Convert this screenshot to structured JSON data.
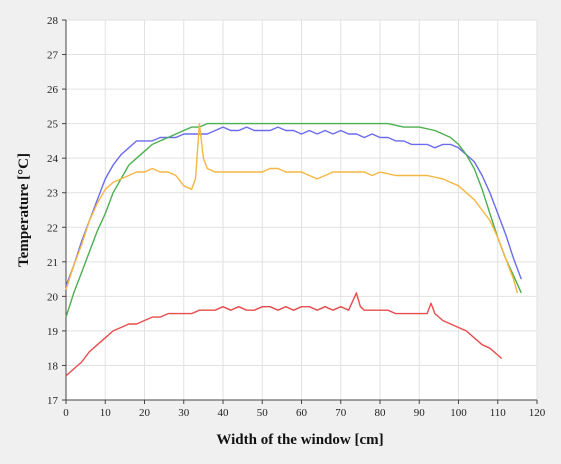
{
  "chart_data": {
    "type": "line",
    "xlabel": "Width of the window [cm]",
    "ylabel": "Temperature [°C]",
    "xlim": [
      0,
      120
    ],
    "ylim": [
      17,
      28
    ],
    "xticks": [
      0,
      10,
      20,
      30,
      40,
      50,
      60,
      70,
      80,
      90,
      100,
      110,
      120
    ],
    "yticks": [
      17,
      18,
      19,
      20,
      21,
      22,
      23,
      24,
      25,
      26,
      27,
      28
    ],
    "grid": true,
    "series": [
      {
        "color": "#6b6bef",
        "points": [
          [
            0,
            20.3
          ],
          [
            2,
            20.9
          ],
          [
            4,
            21.6
          ],
          [
            6,
            22.2
          ],
          [
            8,
            22.8
          ],
          [
            10,
            23.4
          ],
          [
            12,
            23.8
          ],
          [
            14,
            24.1
          ],
          [
            16,
            24.3
          ],
          [
            18,
            24.5
          ],
          [
            20,
            24.5
          ],
          [
            22,
            24.5
          ],
          [
            24,
            24.6
          ],
          [
            26,
            24.6
          ],
          [
            28,
            24.6
          ],
          [
            30,
            24.7
          ],
          [
            32,
            24.7
          ],
          [
            34,
            24.7
          ],
          [
            36,
            24.7
          ],
          [
            38,
            24.8
          ],
          [
            40,
            24.9
          ],
          [
            42,
            24.8
          ],
          [
            44,
            24.8
          ],
          [
            46,
            24.9
          ],
          [
            48,
            24.8
          ],
          [
            50,
            24.8
          ],
          [
            52,
            24.8
          ],
          [
            54,
            24.9
          ],
          [
            56,
            24.8
          ],
          [
            58,
            24.8
          ],
          [
            60,
            24.7
          ],
          [
            62,
            24.8
          ],
          [
            64,
            24.7
          ],
          [
            66,
            24.8
          ],
          [
            68,
            24.7
          ],
          [
            70,
            24.8
          ],
          [
            72,
            24.7
          ],
          [
            74,
            24.7
          ],
          [
            76,
            24.6
          ],
          [
            78,
            24.7
          ],
          [
            80,
            24.6
          ],
          [
            82,
            24.6
          ],
          [
            84,
            24.5
          ],
          [
            86,
            24.5
          ],
          [
            88,
            24.4
          ],
          [
            90,
            24.4
          ],
          [
            92,
            24.4
          ],
          [
            94,
            24.3
          ],
          [
            96,
            24.4
          ],
          [
            98,
            24.4
          ],
          [
            100,
            24.3
          ],
          [
            102,
            24.1
          ],
          [
            104,
            23.9
          ],
          [
            106,
            23.5
          ],
          [
            108,
            23.0
          ],
          [
            110,
            22.4
          ],
          [
            112,
            21.8
          ],
          [
            114,
            21.1
          ],
          [
            116,
            20.5
          ]
        ]
      },
      {
        "color": "#4caf50",
        "points": [
          [
            0,
            19.4
          ],
          [
            2,
            20.1
          ],
          [
            4,
            20.7
          ],
          [
            6,
            21.3
          ],
          [
            8,
            21.9
          ],
          [
            10,
            22.4
          ],
          [
            12,
            23.0
          ],
          [
            14,
            23.4
          ],
          [
            16,
            23.8
          ],
          [
            18,
            24.0
          ],
          [
            20,
            24.2
          ],
          [
            22,
            24.4
          ],
          [
            24,
            24.5
          ],
          [
            26,
            24.6
          ],
          [
            28,
            24.7
          ],
          [
            30,
            24.8
          ],
          [
            32,
            24.9
          ],
          [
            34,
            24.9
          ],
          [
            36,
            25.0
          ],
          [
            38,
            25.0
          ],
          [
            40,
            25.0
          ],
          [
            44,
            25.0
          ],
          [
            48,
            25.0
          ],
          [
            52,
            25.0
          ],
          [
            56,
            25.0
          ],
          [
            60,
            25.0
          ],
          [
            64,
            25.0
          ],
          [
            66,
            25.0
          ],
          [
            70,
            25.0
          ],
          [
            74,
            25.0
          ],
          [
            78,
            25.0
          ],
          [
            82,
            25.0
          ],
          [
            86,
            24.9
          ],
          [
            90,
            24.9
          ],
          [
            94,
            24.8
          ],
          [
            96,
            24.7
          ],
          [
            98,
            24.6
          ],
          [
            100,
            24.4
          ],
          [
            102,
            24.1
          ],
          [
            104,
            23.7
          ],
          [
            106,
            23.1
          ],
          [
            108,
            22.4
          ],
          [
            110,
            21.7
          ],
          [
            112,
            21.1
          ],
          [
            114,
            20.6
          ],
          [
            116,
            20.1
          ]
        ]
      },
      {
        "color": "#f5b642",
        "points": [
          [
            0,
            20.2
          ],
          [
            2,
            20.9
          ],
          [
            4,
            21.5
          ],
          [
            6,
            22.2
          ],
          [
            8,
            22.7
          ],
          [
            10,
            23.1
          ],
          [
            12,
            23.3
          ],
          [
            14,
            23.4
          ],
          [
            16,
            23.5
          ],
          [
            18,
            23.6
          ],
          [
            20,
            23.6
          ],
          [
            22,
            23.7
          ],
          [
            24,
            23.6
          ],
          [
            26,
            23.6
          ],
          [
            28,
            23.5
          ],
          [
            30,
            23.2
          ],
          [
            32,
            23.1
          ],
          [
            33,
            23.4
          ],
          [
            34,
            25.0
          ],
          [
            35,
            24.0
          ],
          [
            36,
            23.7
          ],
          [
            38,
            23.6
          ],
          [
            40,
            23.6
          ],
          [
            44,
            23.6
          ],
          [
            48,
            23.6
          ],
          [
            50,
            23.6
          ],
          [
            52,
            23.7
          ],
          [
            54,
            23.7
          ],
          [
            56,
            23.6
          ],
          [
            60,
            23.6
          ],
          [
            62,
            23.5
          ],
          [
            64,
            23.4
          ],
          [
            66,
            23.5
          ],
          [
            68,
            23.6
          ],
          [
            72,
            23.6
          ],
          [
            76,
            23.6
          ],
          [
            78,
            23.5
          ],
          [
            80,
            23.6
          ],
          [
            84,
            23.5
          ],
          [
            88,
            23.5
          ],
          [
            92,
            23.5
          ],
          [
            96,
            23.4
          ],
          [
            98,
            23.3
          ],
          [
            100,
            23.2
          ],
          [
            102,
            23.0
          ],
          [
            104,
            22.8
          ],
          [
            106,
            22.5
          ],
          [
            108,
            22.2
          ],
          [
            110,
            21.7
          ],
          [
            112,
            21.1
          ],
          [
            114,
            20.5
          ],
          [
            115,
            20.1
          ]
        ]
      },
      {
        "color": "#e84c4c",
        "points": [
          [
            0,
            17.7
          ],
          [
            2,
            17.9
          ],
          [
            4,
            18.1
          ],
          [
            6,
            18.4
          ],
          [
            8,
            18.6
          ],
          [
            10,
            18.8
          ],
          [
            12,
            19.0
          ],
          [
            14,
            19.1
          ],
          [
            16,
            19.2
          ],
          [
            18,
            19.2
          ],
          [
            20,
            19.3
          ],
          [
            22,
            19.4
          ],
          [
            24,
            19.4
          ],
          [
            26,
            19.5
          ],
          [
            28,
            19.5
          ],
          [
            30,
            19.5
          ],
          [
            32,
            19.5
          ],
          [
            34,
            19.6
          ],
          [
            36,
            19.6
          ],
          [
            38,
            19.6
          ],
          [
            40,
            19.7
          ],
          [
            42,
            19.6
          ],
          [
            44,
            19.7
          ],
          [
            46,
            19.6
          ],
          [
            48,
            19.6
          ],
          [
            50,
            19.7
          ],
          [
            52,
            19.7
          ],
          [
            54,
            19.6
          ],
          [
            56,
            19.7
          ],
          [
            58,
            19.6
          ],
          [
            60,
            19.7
          ],
          [
            62,
            19.7
          ],
          [
            64,
            19.6
          ],
          [
            66,
            19.7
          ],
          [
            68,
            19.6
          ],
          [
            70,
            19.7
          ],
          [
            72,
            19.6
          ],
          [
            74,
            20.1
          ],
          [
            75,
            19.7
          ],
          [
            76,
            19.6
          ],
          [
            78,
            19.6
          ],
          [
            80,
            19.6
          ],
          [
            82,
            19.6
          ],
          [
            84,
            19.5
          ],
          [
            86,
            19.5
          ],
          [
            88,
            19.5
          ],
          [
            90,
            19.5
          ],
          [
            92,
            19.5
          ],
          [
            93,
            19.8
          ],
          [
            94,
            19.5
          ],
          [
            96,
            19.3
          ],
          [
            98,
            19.2
          ],
          [
            100,
            19.1
          ],
          [
            102,
            19.0
          ],
          [
            104,
            18.8
          ],
          [
            106,
            18.6
          ],
          [
            108,
            18.5
          ],
          [
            110,
            18.3
          ],
          [
            111,
            18.2
          ]
        ]
      }
    ]
  },
  "colors": {
    "background": "#f0f0f0",
    "plot_background": "#ffffff",
    "grid": "#e2e2e2",
    "axis": "#444444"
  }
}
